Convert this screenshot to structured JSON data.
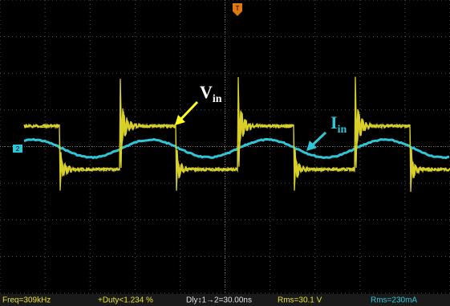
{
  "labels": {
    "vin": "V",
    "vin_sub": "in",
    "iin": "I",
    "iin_sub": "in"
  },
  "markers": {
    "channel2": "2",
    "trigger": "T"
  },
  "measurements": [
    "Freq=309kHz",
    "+Duty<1.234 %",
    "Dly↕1→2=30.00ns",
    "Rms=30.1 V",
    "Rms=230mA"
  ]
}
